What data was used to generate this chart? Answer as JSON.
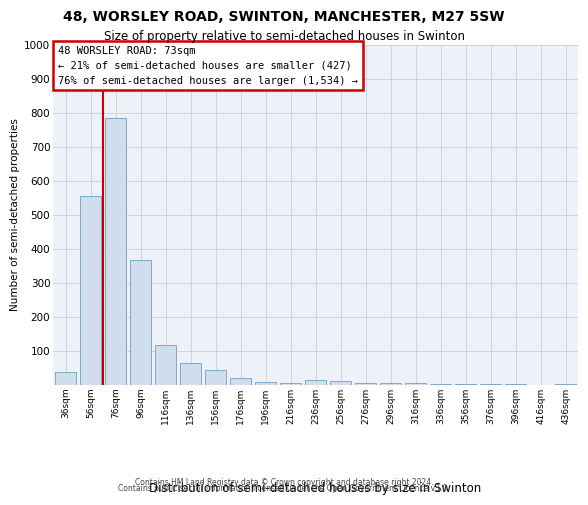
{
  "title_line1": "48, WORSLEY ROAD, SWINTON, MANCHESTER, M27 5SW",
  "title_line2": "Size of property relative to semi-detached houses in Swinton",
  "xlabel": "Distribution of semi-detached houses by size in Swinton",
  "ylabel": "Number of semi-detached properties",
  "categories": [
    "36sqm",
    "56sqm",
    "76sqm",
    "96sqm",
    "116sqm",
    "136sqm",
    "156sqm",
    "176sqm",
    "196sqm",
    "216sqm",
    "236sqm",
    "256sqm",
    "276sqm",
    "296sqm",
    "316sqm",
    "336sqm",
    "356sqm",
    "376sqm",
    "396sqm",
    "416sqm",
    "436sqm"
  ],
  "values": [
    37,
    555,
    783,
    365,
    115,
    63,
    42,
    20,
    8,
    5,
    12,
    9,
    5,
    4,
    3,
    2,
    1,
    1,
    1,
    0,
    1
  ],
  "bar_color": "#cfdded",
  "bar_edge_color": "#7aaac8",
  "vline_color": "#cc0000",
  "vline_x": 1.5,
  "annotation_line1": "48 WORSLEY ROAD: 73sqm",
  "annotation_line2": "← 21% of semi-detached houses are smaller (427)",
  "annotation_line3": "76% of semi-detached houses are larger (1,534) →",
  "annotation_box_fc": "#ffffff",
  "annotation_box_ec": "#cc0000",
  "ylim": [
    0,
    1000
  ],
  "yticks": [
    0,
    100,
    200,
    300,
    400,
    500,
    600,
    700,
    800,
    900,
    1000
  ],
  "grid_color": "#c8d4e4",
  "bg_color": "#eef2f8",
  "footer1": "Contains HM Land Registry data © Crown copyright and database right 2024.",
  "footer2": "Contains public sector information licensed under the Open Government Licence v3.0."
}
